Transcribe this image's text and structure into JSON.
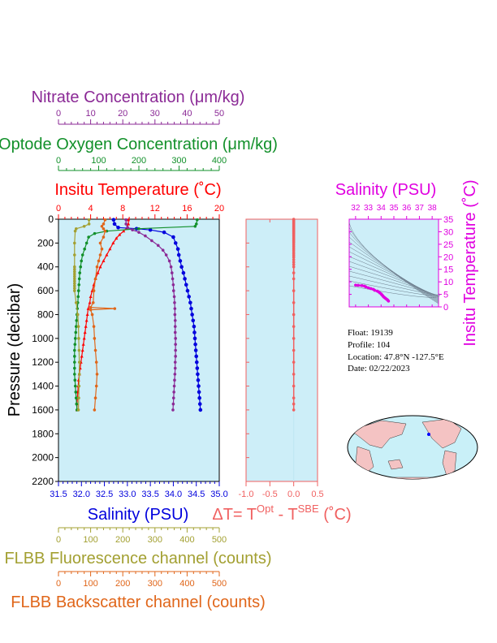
{
  "float_info": {
    "float": "Float:  19139",
    "profile": "Profile:  104",
    "location": "Location:  47.8°N  -127.5°E",
    "date": "Date:  02/22/2023"
  },
  "colors": {
    "nitrate": "#8b2a96",
    "oxygen": "#12902a",
    "temperature": "#ff0000",
    "salinity": "#0000dd",
    "fluorescence": "#a3a032",
    "backscatter": "#e0661a",
    "delta_t": "#f06060",
    "ts_salinity": "#e000e0",
    "panel_bg": "#cdeef8"
  },
  "chart_data": [
    {
      "type": "line",
      "panel": "profiles",
      "ylabel": "Pressure (decibar)",
      "ylim": [
        2200,
        0
      ],
      "yticks": [
        "0",
        "200",
        "400",
        "600",
        "800",
        "1000",
        "1200",
        "1400",
        "1600",
        "1800",
        "2000",
        "2200"
      ],
      "axes": {
        "nitrate": {
          "label": "Nitrate Concentration (μm/kg)",
          "range": [
            0,
            50
          ],
          "ticks": [
            "0",
            "10",
            "20",
            "30",
            "40",
            "50"
          ]
        },
        "oxygen": {
          "label": "Optode Oxygen Concentration (μm/kg)",
          "range": [
            0,
            400
          ],
          "ticks": [
            "0",
            "100",
            "200",
            "300",
            "400"
          ]
        },
        "temperature": {
          "label": "Insitu Temperature (˚C)",
          "range": [
            0,
            20
          ],
          "ticks": [
            "0",
            "4",
            "8",
            "12",
            "16",
            "20"
          ]
        },
        "salinity": {
          "label": "Salinity (PSU)",
          "range": [
            31.5,
            35.0
          ],
          "ticks": [
            "31.5",
            "32.0",
            "32.5",
            "33.0",
            "33.5",
            "34.0",
            "34.5",
            "35.0"
          ]
        },
        "fluorescence": {
          "label": "FLBB Fluorescence channel (counts)",
          "range": [
            0,
            500
          ],
          "ticks": [
            "0",
            "100",
            "200",
            "300",
            "400",
            "500"
          ]
        },
        "backscatter": {
          "label": "FLBB Backscatter channel (counts)",
          "range": [
            0,
            500
          ],
          "ticks": [
            "0",
            "100",
            "200",
            "300",
            "400",
            "500"
          ]
        }
      },
      "series": [
        {
          "key": "temperature",
          "points": [
            [
              8.7,
              5
            ],
            [
              8.7,
              40
            ],
            [
              8.5,
              75
            ],
            [
              8.1,
              100
            ],
            [
              7.6,
              130
            ],
            [
              7.2,
              160
            ],
            [
              6.8,
              200
            ],
            [
              6.4,
              250
            ],
            [
              6.0,
              300
            ],
            [
              5.6,
              350
            ],
            [
              5.2,
              400
            ],
            [
              4.9,
              450
            ],
            [
              4.6,
              500
            ],
            [
              4.4,
              550
            ],
            [
              4.2,
              600
            ],
            [
              4.0,
              650
            ],
            [
              3.9,
              700
            ],
            [
              3.7,
              750
            ],
            [
              3.6,
              800
            ],
            [
              3.5,
              850
            ],
            [
              3.4,
              900
            ],
            [
              3.3,
              950
            ],
            [
              3.2,
              1000
            ],
            [
              3.1,
              1050
            ],
            [
              3.0,
              1100
            ],
            [
              2.9,
              1150
            ],
            [
              2.8,
              1200
            ],
            [
              2.7,
              1250
            ],
            [
              2.6,
              1300
            ],
            [
              2.5,
              1350
            ],
            [
              2.45,
              1400
            ],
            [
              2.4,
              1450
            ],
            [
              2.35,
              1500
            ],
            [
              2.3,
              1550
            ],
            [
              2.3,
              1600
            ]
          ]
        },
        {
          "key": "salinity",
          "points": [
            [
              32.7,
              5
            ],
            [
              32.72,
              40
            ],
            [
              32.8,
              70
            ],
            [
              33.2,
              80
            ],
            [
              33.5,
              90
            ],
            [
              33.8,
              110
            ],
            [
              34.0,
              150
            ],
            [
              34.05,
              200
            ],
            [
              34.1,
              250
            ],
            [
              34.12,
              300
            ],
            [
              34.15,
              350
            ],
            [
              34.18,
              400
            ],
            [
              34.22,
              450
            ],
            [
              34.25,
              500
            ],
            [
              34.28,
              550
            ],
            [
              34.31,
              600
            ],
            [
              34.34,
              650
            ],
            [
              34.37,
              700
            ],
            [
              34.39,
              750
            ],
            [
              34.41,
              800
            ],
            [
              34.43,
              850
            ],
            [
              34.45,
              900
            ],
            [
              34.46,
              950
            ],
            [
              34.47,
              1000
            ],
            [
              34.48,
              1050
            ],
            [
              34.49,
              1100
            ],
            [
              34.5,
              1150
            ],
            [
              34.51,
              1200
            ],
            [
              34.52,
              1250
            ],
            [
              34.53,
              1300
            ],
            [
              34.54,
              1350
            ],
            [
              34.55,
              1400
            ],
            [
              34.56,
              1450
            ],
            [
              34.57,
              1500
            ],
            [
              34.58,
              1550
            ],
            [
              34.59,
              1600
            ]
          ]
        },
        {
          "key": "oxygen",
          "points": [
            [
              345,
              5
            ],
            [
              343,
              40
            ],
            [
              340,
              60
            ],
            [
              200,
              80
            ],
            [
              120,
              100
            ],
            [
              90,
              120
            ],
            [
              75,
              150
            ],
            [
              70,
              200
            ],
            [
              65,
              250
            ],
            [
              60,
              300
            ],
            [
              57,
              350
            ],
            [
              55,
              400
            ],
            [
              53,
              450
            ],
            [
              52,
              500
            ],
            [
              51,
              550
            ],
            [
              50,
              600
            ],
            [
              49,
              650
            ],
            [
              48,
              700
            ],
            [
              47,
              750
            ],
            [
              46,
              800
            ],
            [
              45,
              850
            ],
            [
              44,
              900
            ],
            [
              43,
              950
            ],
            [
              42,
              1000
            ],
            [
              41,
              1050
            ],
            [
              40,
              1100
            ],
            [
              40,
              1150
            ],
            [
              40,
              1200
            ],
            [
              40,
              1250
            ],
            [
              40,
              1300
            ],
            [
              41,
              1350
            ],
            [
              42,
              1400
            ],
            [
              43,
              1450
            ],
            [
              44,
              1500
            ],
            [
              45,
              1550
            ],
            [
              46,
              1600
            ]
          ]
        },
        {
          "key": "nitrate",
          "points": [
            [
              21,
              5
            ],
            [
              21,
              40
            ],
            [
              21.5,
              70
            ],
            [
              23,
              90
            ],
            [
              25,
              110
            ],
            [
              27,
              140
            ],
            [
              29,
              180
            ],
            [
              31,
              220
            ],
            [
              32.5,
              260
            ],
            [
              33.5,
              300
            ],
            [
              34.5,
              350
            ],
            [
              35,
              400
            ],
            [
              35.3,
              450
            ],
            [
              35.5,
              500
            ],
            [
              35.7,
              550
            ],
            [
              35.8,
              600
            ],
            [
              36,
              650
            ],
            [
              36.1,
              700
            ],
            [
              36.2,
              750
            ],
            [
              36.2,
              800
            ],
            [
              36.3,
              850
            ],
            [
              36.3,
              900
            ],
            [
              36.3,
              950
            ],
            [
              36.4,
              1000
            ],
            [
              36.4,
              1050
            ],
            [
              36.4,
              1100
            ],
            [
              36.4,
              1150
            ],
            [
              36.3,
              1200
            ],
            [
              36.3,
              1250
            ],
            [
              36.2,
              1300
            ],
            [
              36.1,
              1350
            ],
            [
              36.0,
              1400
            ],
            [
              35.9,
              1450
            ],
            [
              35.8,
              1500
            ],
            [
              35.7,
              1550
            ],
            [
              35.6,
              1600
            ]
          ]
        },
        {
          "key": "fluorescence",
          "points": [
            [
              95,
              5
            ],
            [
              95,
              40
            ],
            [
              80,
              60
            ],
            [
              55,
              80
            ],
            [
              52,
              100
            ],
            [
              50,
              200
            ],
            [
              50,
              300
            ],
            [
              50,
              400
            ],
            [
              50,
              420
            ],
            [
              50,
              440
            ],
            [
              50,
              460
            ],
            [
              50,
              480
            ],
            [
              50,
              500
            ],
            [
              50,
              520
            ],
            [
              50,
              540
            ],
            [
              50,
              560
            ],
            [
              50,
              580
            ],
            [
              50,
              600
            ],
            [
              55,
              700
            ],
            [
              60,
              800
            ],
            [
              62,
              900
            ],
            [
              63,
              1000
            ],
            [
              64,
              1100
            ],
            [
              65,
              1200
            ],
            [
              65,
              1300
            ],
            [
              64,
              1400
            ],
            [
              63,
              1500
            ],
            [
              62,
              1600
            ]
          ]
        },
        {
          "key": "backscatter",
          "points": [
            [
              145,
              5
            ],
            [
              140,
              40
            ],
            [
              135,
              60
            ],
            [
              140,
              80
            ],
            [
              145,
              100
            ],
            [
              140,
              150
            ],
            [
              130,
              200
            ],
            [
              135,
              250
            ],
            [
              130,
              300
            ],
            [
              125,
              350
            ],
            [
              120,
              400
            ],
            [
              115,
              500
            ],
            [
              110,
              600
            ],
            [
              108,
              700
            ],
            [
              100,
              740
            ],
            [
              175,
              750
            ],
            [
              100,
              760
            ],
            [
              105,
              800
            ],
            [
              110,
              900
            ],
            [
              112,
              1000
            ],
            [
              115,
              1100
            ],
            [
              118,
              1200
            ],
            [
              120,
              1300
            ],
            [
              118,
              1400
            ],
            [
              115,
              1500
            ],
            [
              112,
              1600
            ]
          ]
        }
      ]
    },
    {
      "type": "scatter",
      "panel": "delta_t",
      "xlabel": "ΔT= T",
      "xlabel_sup1": "Opt",
      "xlabel_mid": " - T",
      "xlabel_sup2": "SBE",
      "xlabel_unit": " (˚C)",
      "xlim": [
        -1.0,
        0.5
      ],
      "xticks": [
        "-1.0",
        "-0.5",
        "0.0",
        "0.5"
      ],
      "ylim": [
        2200,
        0
      ],
      "x": [
        0.0,
        0.0,
        0.0,
        0.0,
        0.0,
        0.0,
        0.0,
        0.0,
        0.0,
        0.0,
        0.0,
        0.0,
        0.0,
        0.0,
        0.0,
        0.0,
        0.0,
        0.0,
        0.0,
        0.0,
        0.0,
        0.0,
        0.0,
        0.0,
        0.0,
        0.0,
        0.0,
        0.0,
        0.0,
        0.0,
        0.0,
        0.0,
        0.0,
        0.0,
        0.0,
        0.0,
        0.0,
        0.0,
        0.0,
        0.0,
        0.0,
        0.0,
        0.0,
        0.0,
        0.0,
        0.0,
        0.0,
        0.0,
        0.0,
        0.0
      ],
      "y": [
        0,
        8,
        16,
        24,
        32,
        40,
        48,
        56,
        64,
        72,
        80,
        88,
        96,
        104,
        112,
        120,
        130,
        140,
        150,
        160,
        170,
        180,
        190,
        200,
        215,
        230,
        245,
        260,
        275,
        290,
        305,
        320,
        340,
        360,
        380,
        400,
        450,
        500,
        600,
        700,
        800,
        900,
        1000,
        1100,
        1200,
        1300,
        1400,
        1500,
        1550,
        1600
      ]
    },
    {
      "type": "scatter",
      "panel": "ts_diagram",
      "xlabel": "Salinity (PSU)",
      "ylabel": "Insitu Temperature (˚C)",
      "xlim": [
        31.5,
        38.5
      ],
      "ylim": [
        0,
        35
      ],
      "xticks": [
        "32",
        "33",
        "34",
        "35",
        "36",
        "37",
        "38"
      ],
      "yticks": [
        "0",
        "5",
        "10",
        "15",
        "20",
        "25",
        "30",
        "35"
      ],
      "x": [
        32.0,
        32.2,
        32.5,
        32.7,
        32.8,
        33.0,
        33.2,
        33.4,
        33.5,
        33.7,
        33.8,
        33.9,
        34.0,
        34.05,
        34.1,
        34.15,
        34.2,
        34.25,
        34.3,
        34.35,
        34.4,
        34.45,
        34.5,
        34.55,
        34.58
      ],
      "y": [
        8.7,
        8.6,
        8.5,
        8.3,
        8.0,
        7.6,
        7.3,
        7.0,
        6.6,
        6.3,
        6.0,
        5.6,
        5.2,
        4.9,
        4.6,
        4.3,
        4.0,
        3.8,
        3.6,
        3.4,
        3.2,
        3.0,
        2.8,
        2.5,
        2.3
      ]
    }
  ]
}
